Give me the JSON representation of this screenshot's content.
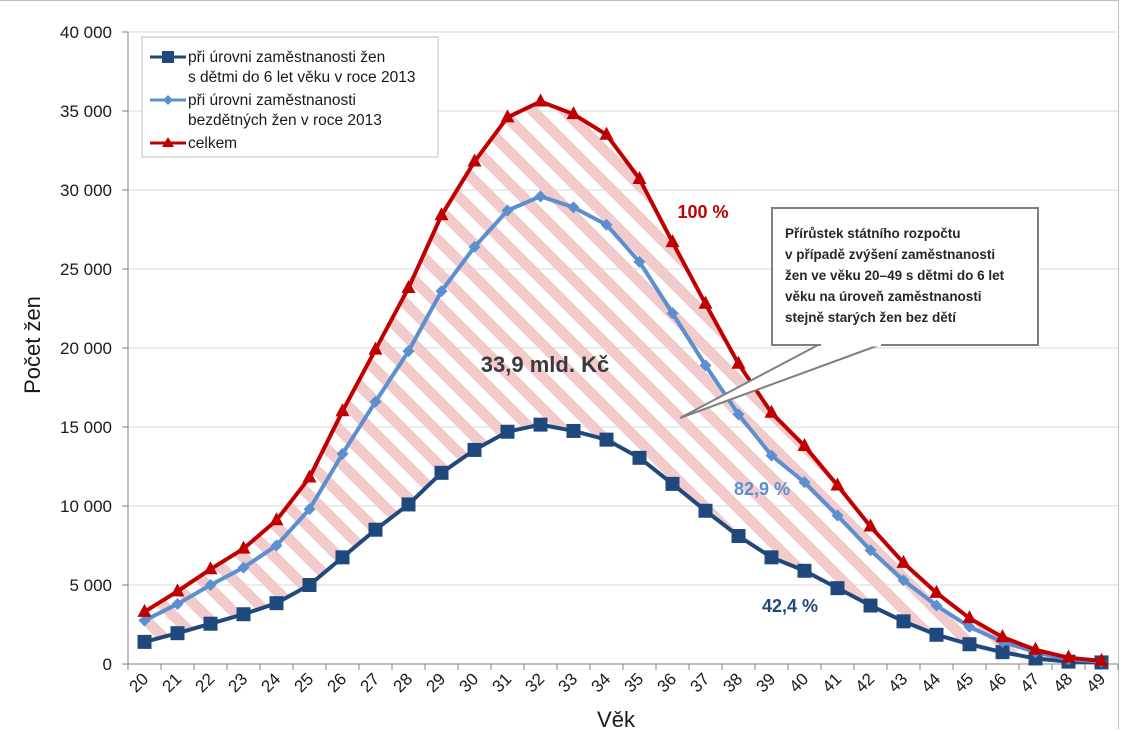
{
  "chart_data": {
    "type": "line",
    "xlabel": "Věk",
    "ylabel": "Počet žen",
    "ylim": [
      0,
      40000
    ],
    "yticks": [
      0,
      5000,
      10000,
      15000,
      20000,
      25000,
      30000,
      35000,
      40000
    ],
    "ytick_labels": [
      "0",
      "5 000",
      "10 000",
      "15 000",
      "20 000",
      "25 000",
      "30 000",
      "35 000",
      "40 000"
    ],
    "x": [
      20,
      21,
      22,
      23,
      24,
      25,
      26,
      27,
      28,
      29,
      30,
      31,
      32,
      33,
      34,
      35,
      36,
      37,
      38,
      39,
      40,
      41,
      42,
      43,
      44,
      45,
      46,
      47,
      48,
      49
    ],
    "grid": "horizontal",
    "legend_position": "top-left",
    "series": [
      {
        "name": "při úrovni zaměstnanosti žen s dětmi do 6 let věku v roce 2013",
        "legend_lines": [
          "při úrovni zaměstnanosti žen",
          "s dětmi do 6 let věku v roce 2013"
        ],
        "color": "#1f497d",
        "marker": "square",
        "values": [
          1400,
          1950,
          2550,
          3150,
          3850,
          5000,
          6750,
          8500,
          10100,
          12100,
          13550,
          14700,
          15150,
          14750,
          14200,
          13050,
          11400,
          9700,
          8100,
          6750,
          5900,
          4800,
          3700,
          2700,
          1850,
          1250,
          750,
          350,
          150,
          100
        ]
      },
      {
        "name": "při úrovni zaměstnanosti bezdětných žen v roce 2013",
        "legend_lines": [
          "při úrovni zaměstnanosti",
          "bezdětných žen v roce 2013"
        ],
        "color": "#5b8fcf",
        "marker": "diamond",
        "values": [
          2750,
          3800,
          5000,
          6100,
          7500,
          9800,
          13300,
          16600,
          19800,
          23600,
          26400,
          28700,
          29600,
          28900,
          27800,
          25450,
          22200,
          18900,
          15800,
          13200,
          11500,
          9400,
          7200,
          5300,
          3700,
          2350,
          1400,
          750,
          300,
          150
        ]
      },
      {
        "name": "celkem",
        "legend_lines": [
          "celkem"
        ],
        "color": "#c00000",
        "marker": "triangle",
        "values": [
          3300,
          4600,
          6000,
          7300,
          9100,
          11800,
          16000,
          19900,
          23800,
          28400,
          31800,
          34600,
          35600,
          34800,
          33500,
          30700,
          26700,
          22800,
          19000,
          15900,
          13800,
          11300,
          8700,
          6400,
          4500,
          2900,
          1700,
          900,
          400,
          200
        ]
      }
    ],
    "annotations": {
      "total_label": "33,9 mld. Kč",
      "pct_total": "100 %",
      "pct_childless": "82,9 %",
      "pct_mothers": "42,4 %",
      "callout_lines": [
        "Přírůstek státního rozpočtu",
        "v případě zvýšení zaměstnanosti",
        "žen ve věku 20–49 s dětmi do 6 let",
        "věku na úroveň zaměstnanosti",
        "stejně starých žen bez dětí"
      ]
    },
    "colors": {
      "hatch": "#f2cccc",
      "grid": "#d9d9d9",
      "axis": "#7f7f7f",
      "callout_border": "#7f7f7f"
    }
  }
}
